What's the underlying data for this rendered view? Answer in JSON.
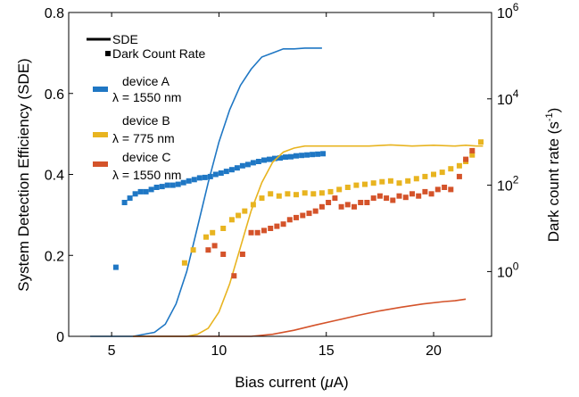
{
  "chart_data": {
    "type": "line+scatter",
    "xlabel": "Bias current (",
    "xlabel_mu": "μ",
    "xlabel_end": "A)",
    "ylabel_left": "System Detection Efficiency (SDE)",
    "ylabel_right_base": "Dark count rate (s",
    "ylabel_right_sup": "-1",
    "ylabel_right_end": ")",
    "xlim": [
      3,
      22.7
    ],
    "ylim_left": [
      0,
      0.8
    ],
    "ylim_right_log10": [
      -1.5,
      6
    ],
    "x_ticks": [
      5,
      10,
      15,
      20
    ],
    "x_tick_labels": [
      "5",
      "10",
      "15",
      "20"
    ],
    "y_ticks_left": [
      0,
      0.2,
      0.4,
      0.6,
      0.8
    ],
    "y_tick_labels_left": [
      "0",
      "0.2",
      "0.4",
      "0.6",
      "0.8"
    ],
    "y_ticks_right_log10": [
      0,
      2,
      4,
      6
    ],
    "y_tick_labels_right_base": [
      "10",
      "10",
      "10",
      "10"
    ],
    "y_tick_labels_right_exp": [
      "0",
      "2",
      "4",
      "6"
    ],
    "legend": {
      "position": "top-left",
      "style_entries": [
        {
          "label": "SDE",
          "symbol": "line"
        },
        {
          "label": "Dark Count Rate",
          "symbol": "square"
        }
      ],
      "device_entries": [
        {
          "line1": "device A",
          "line2": "λ = 1550 nm",
          "color": "#1f77c4"
        },
        {
          "line1": "device B",
          "line2": "λ = 775 nm",
          "color": "#e8b420"
        },
        {
          "line1": "device C",
          "line2": "λ = 1550 nm",
          "color": "#d4532a"
        }
      ]
    },
    "series": [
      {
        "color": "#1f77c4",
        "sde": {
          "x": [
            4.0,
            6.0,
            7.0,
            7.5,
            8.0,
            8.5,
            9.0,
            9.5,
            10.0,
            10.5,
            11.0,
            11.5,
            12.0,
            12.5,
            13.0,
            13.5,
            14.0,
            14.5,
            14.8
          ],
          "y": [
            0.0,
            0.0,
            0.01,
            0.03,
            0.08,
            0.16,
            0.27,
            0.38,
            0.48,
            0.56,
            0.62,
            0.66,
            0.69,
            0.7,
            0.71,
            0.71,
            0.712,
            0.712,
            0.712
          ]
        },
        "dark_counts": {
          "x": [
            5.2,
            5.6,
            5.85,
            6.1,
            6.35,
            6.6,
            6.85,
            7.1,
            7.35,
            7.6,
            7.85,
            8.1,
            8.35,
            8.6,
            8.85,
            9.1,
            9.35,
            9.6,
            9.85,
            10.1,
            10.35,
            10.6,
            10.85,
            11.1,
            11.35,
            11.6,
            11.85,
            12.1,
            12.35,
            12.6,
            12.85,
            13.1,
            13.35,
            13.6,
            13.85,
            14.1,
            14.35,
            14.6,
            14.85
          ],
          "y_log10": [
            0.1,
            1.6,
            1.7,
            1.8,
            1.85,
            1.85,
            1.9,
            1.95,
            1.97,
            2.0,
            2.0,
            2.02,
            2.06,
            2.1,
            2.13,
            2.17,
            2.18,
            2.2,
            2.25,
            2.28,
            2.32,
            2.36,
            2.4,
            2.45,
            2.48,
            2.52,
            2.55,
            2.58,
            2.6,
            2.62,
            2.63,
            2.65,
            2.66,
            2.68,
            2.69,
            2.7,
            2.71,
            2.72,
            2.73
          ]
        }
      },
      {
        "color": "#e8b420",
        "sde": {
          "x": [
            6.0,
            8.5,
            9.0,
            9.5,
            10.0,
            10.5,
            11.0,
            11.5,
            12.0,
            12.5,
            13.0,
            13.5,
            14.0,
            14.5,
            15.0,
            16.0,
            17.0,
            18.0,
            19.0,
            20.0,
            21.0,
            21.5,
            22.0,
            22.3
          ],
          "y": [
            0.0,
            0.0,
            0.005,
            0.02,
            0.06,
            0.13,
            0.22,
            0.31,
            0.38,
            0.43,
            0.455,
            0.465,
            0.47,
            0.47,
            0.47,
            0.47,
            0.47,
            0.473,
            0.47,
            0.472,
            0.47,
            0.472,
            0.47,
            0.47
          ]
        },
        "dark_counts": {
          "x": [
            8.4,
            8.8,
            9.4,
            9.7,
            10.2,
            10.6,
            10.9,
            11.2,
            11.6,
            12.0,
            12.4,
            12.8,
            13.2,
            13.6,
            14.0,
            14.4,
            14.8,
            15.2,
            15.6,
            16.0,
            16.4,
            16.8,
            17.2,
            17.6,
            18.0,
            18.4,
            18.8,
            19.2,
            19.6,
            20.0,
            20.4,
            20.8,
            21.2,
            21.5,
            21.8,
            22.2
          ],
          "y_log10": [
            0.2,
            0.5,
            0.8,
            0.9,
            1.0,
            1.2,
            1.3,
            1.4,
            1.55,
            1.7,
            1.8,
            1.75,
            1.8,
            1.78,
            1.82,
            1.8,
            1.82,
            1.85,
            1.9,
            1.95,
            2.0,
            2.02,
            2.05,
            2.08,
            2.1,
            2.05,
            2.1,
            2.15,
            2.2,
            2.25,
            2.3,
            2.38,
            2.45,
            2.55,
            2.7,
            3.0
          ]
        }
      },
      {
        "color": "#d4532a",
        "sde": {
          "x": [
            6.0,
            11.5,
            12.5,
            13.5,
            14.5,
            15.5,
            16.5,
            17.5,
            18.5,
            19.5,
            20.5,
            21.0,
            21.5
          ],
          "y": [
            0.0,
            0.0,
            0.005,
            0.015,
            0.028,
            0.04,
            0.052,
            0.063,
            0.072,
            0.08,
            0.086,
            0.088,
            0.092
          ]
        },
        "dark_counts": {
          "x": [
            9.5,
            9.8,
            10.2,
            10.7,
            11.1,
            11.5,
            11.8,
            12.1,
            12.4,
            12.7,
            13.0,
            13.3,
            13.6,
            13.9,
            14.2,
            14.5,
            14.8,
            15.1,
            15.4,
            15.7,
            16.0,
            16.3,
            16.6,
            16.9,
            17.2,
            17.5,
            17.8,
            18.1,
            18.4,
            18.7,
            19.0,
            19.3,
            19.6,
            19.9,
            20.2,
            20.5,
            20.8,
            21.2,
            21.5,
            21.8
          ],
          "y_log10": [
            0.5,
            0.6,
            0.4,
            -0.1,
            0.4,
            0.9,
            0.9,
            0.95,
            1.0,
            1.05,
            1.1,
            1.2,
            1.25,
            1.3,
            1.35,
            1.4,
            1.5,
            1.6,
            1.7,
            1.5,
            1.55,
            1.5,
            1.6,
            1.6,
            1.7,
            1.75,
            1.7,
            1.65,
            1.75,
            1.72,
            1.8,
            1.75,
            1.85,
            1.8,
            1.9,
            1.95,
            1.9,
            2.2,
            2.6,
            2.8
          ]
        }
      }
    ]
  }
}
